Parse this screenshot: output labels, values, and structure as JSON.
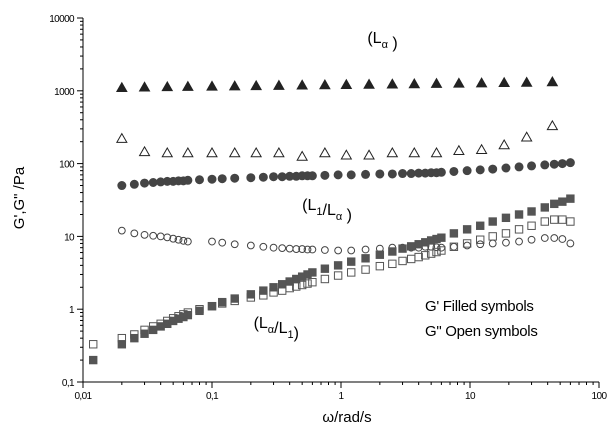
{
  "chart_data": {
    "type": "scatter",
    "title": "",
    "xlabel": "ω/rad/s",
    "ylabel": "G',G\" /Pa",
    "x_scale": "log",
    "y_scale": "log",
    "xlim": [
      0.01,
      100
    ],
    "ylim": [
      0.1,
      10000
    ],
    "grid": false,
    "x_ticks": [
      "0,01",
      "0,1",
      "1",
      "10",
      "100"
    ],
    "y_ticks": [
      "0,1",
      "1",
      "10",
      "100",
      "1000",
      "10000"
    ],
    "annotations": [
      {
        "base": "(L",
        "sub": "α",
        "tail": " )",
        "x": 1.6,
        "y": 4500
      },
      {
        "base": "(L",
        "sub": "1",
        "mid": "/L",
        "sub2": "α",
        "tail": " )",
        "x": 0.5,
        "y": 23
      },
      {
        "base": "(L",
        "sub": "α",
        "mid": "/L",
        "sub2": "1",
        "tail": ")",
        "x": 0.21,
        "y": 0.55
      }
    ],
    "legend": [
      "G' Filled symbols",
      "G\" Open symbols"
    ],
    "series": [
      {
        "phase": "L_alpha",
        "modulus": "G'",
        "marker": "filled-triangle",
        "color": "#222222",
        "points": [
          [
            0.02,
            1100
          ],
          [
            0.03,
            1120
          ],
          [
            0.045,
            1130
          ],
          [
            0.065,
            1140
          ],
          [
            0.1,
            1150
          ],
          [
            0.15,
            1160
          ],
          [
            0.22,
            1170
          ],
          [
            0.33,
            1180
          ],
          [
            0.5,
            1190
          ],
          [
            0.75,
            1200
          ],
          [
            1.1,
            1210
          ],
          [
            1.65,
            1220
          ],
          [
            2.5,
            1230
          ],
          [
            3.7,
            1240
          ],
          [
            5.5,
            1255
          ],
          [
            8.2,
            1265
          ],
          [
            12.3,
            1275
          ],
          [
            18.4,
            1290
          ],
          [
            27.5,
            1300
          ],
          [
            43.5,
            1320
          ]
        ]
      },
      {
        "phase": "L_alpha",
        "modulus": "G\"",
        "marker": "open-triangle",
        "color": "#222222",
        "points": [
          [
            0.02,
            220
          ],
          [
            0.03,
            145
          ],
          [
            0.045,
            140
          ],
          [
            0.065,
            140
          ],
          [
            0.1,
            140
          ],
          [
            0.15,
            140
          ],
          [
            0.22,
            140
          ],
          [
            0.33,
            140
          ],
          [
            0.5,
            125
          ],
          [
            0.75,
            140
          ],
          [
            1.1,
            130
          ],
          [
            1.65,
            130
          ],
          [
            2.5,
            140
          ],
          [
            3.7,
            140
          ],
          [
            5.5,
            140
          ],
          [
            8.2,
            150
          ],
          [
            12.3,
            155
          ],
          [
            18.4,
            180
          ],
          [
            27.5,
            230
          ],
          [
            43.5,
            330
          ]
        ]
      },
      {
        "phase": "L1_La",
        "modulus": "G'",
        "marker": "filled-circle",
        "color": "#444444",
        "points": [
          [
            0.02,
            50
          ],
          [
            0.025,
            52
          ],
          [
            0.03,
            54
          ],
          [
            0.035,
            55
          ],
          [
            0.04,
            56
          ],
          [
            0.045,
            57
          ],
          [
            0.05,
            57
          ],
          [
            0.055,
            58
          ],
          [
            0.06,
            58
          ],
          [
            0.065,
            59
          ],
          [
            0.08,
            60
          ],
          [
            0.1,
            61
          ],
          [
            0.12,
            62
          ],
          [
            0.15,
            63
          ],
          [
            0.2,
            64
          ],
          [
            0.25,
            65
          ],
          [
            0.3,
            66
          ],
          [
            0.35,
            66
          ],
          [
            0.4,
            67
          ],
          [
            0.45,
            67
          ],
          [
            0.5,
            68
          ],
          [
            0.55,
            68
          ],
          [
            0.6,
            68
          ],
          [
            0.75,
            69
          ],
          [
            0.95,
            70
          ],
          [
            1.2,
            70
          ],
          [
            1.55,
            71
          ],
          [
            2,
            72
          ],
          [
            2.5,
            72
          ],
          [
            3,
            73
          ],
          [
            3.5,
            73
          ],
          [
            4,
            74
          ],
          [
            4.5,
            74
          ],
          [
            5,
            75
          ],
          [
            5.5,
            75
          ],
          [
            6,
            76
          ],
          [
            7.5,
            78
          ],
          [
            9.5,
            80
          ],
          [
            12,
            82
          ],
          [
            15,
            84
          ],
          [
            19,
            87
          ],
          [
            24,
            90
          ],
          [
            30,
            93
          ],
          [
            38,
            96
          ],
          [
            45,
            98
          ],
          [
            52,
            100
          ],
          [
            60,
            103
          ]
        ]
      },
      {
        "phase": "L1_La",
        "modulus": "G\"",
        "marker": "open-circle",
        "color": "#444444",
        "points": [
          [
            0.02,
            12
          ],
          [
            0.025,
            11
          ],
          [
            0.03,
            10.5
          ],
          [
            0.035,
            10.2
          ],
          [
            0.04,
            10
          ],
          [
            0.045,
            9.7
          ],
          [
            0.05,
            9.3
          ],
          [
            0.055,
            9
          ],
          [
            0.06,
            8.7
          ],
          [
            0.065,
            8.5
          ],
          [
            0.1,
            8.5
          ],
          [
            0.12,
            8.2
          ],
          [
            0.15,
            7.8
          ],
          [
            0.2,
            7.5
          ],
          [
            0.25,
            7.2
          ],
          [
            0.3,
            7
          ],
          [
            0.35,
            6.9
          ],
          [
            0.4,
            6.8
          ],
          [
            0.45,
            6.7
          ],
          [
            0.5,
            6.7
          ],
          [
            0.55,
            6.6
          ],
          [
            0.6,
            6.6
          ],
          [
            0.75,
            6.5
          ],
          [
            0.95,
            6.4
          ],
          [
            1.2,
            6.4
          ],
          [
            1.55,
            6.6
          ],
          [
            2,
            6.8
          ],
          [
            2.5,
            7
          ],
          [
            3,
            7
          ],
          [
            3.5,
            7
          ],
          [
            4,
            7
          ],
          [
            4.5,
            7.2
          ],
          [
            5,
            7.2
          ],
          [
            5.5,
            7.1
          ],
          [
            6,
            7
          ],
          [
            7.5,
            7.2
          ],
          [
            9.5,
            7.5
          ],
          [
            12,
            7.8
          ],
          [
            15,
            8
          ],
          [
            19,
            8.2
          ],
          [
            24,
            8.5
          ],
          [
            30,
            9
          ],
          [
            38,
            9.5
          ],
          [
            45,
            9.5
          ],
          [
            52,
            9.2
          ],
          [
            60,
            8
          ]
        ]
      },
      {
        "phase": "La_L1",
        "modulus": "G'",
        "marker": "filled-square",
        "color": "#555555",
        "points": [
          [
            0.012,
            0.2
          ],
          [
            0.02,
            0.33
          ],
          [
            0.025,
            0.4
          ],
          [
            0.03,
            0.46
          ],
          [
            0.035,
            0.52
          ],
          [
            0.04,
            0.58
          ],
          [
            0.045,
            0.63
          ],
          [
            0.05,
            0.69
          ],
          [
            0.055,
            0.74
          ],
          [
            0.06,
            0.78
          ],
          [
            0.065,
            0.83
          ],
          [
            0.08,
            0.95
          ],
          [
            0.1,
            1.1
          ],
          [
            0.12,
            1.25
          ],
          [
            0.15,
            1.4
          ],
          [
            0.2,
            1.6
          ],
          [
            0.25,
            1.8
          ],
          [
            0.3,
            2
          ],
          [
            0.35,
            2.2
          ],
          [
            0.4,
            2.4
          ],
          [
            0.45,
            2.6
          ],
          [
            0.5,
            2.8
          ],
          [
            0.55,
            3
          ],
          [
            0.6,
            3.2
          ],
          [
            0.75,
            3.6
          ],
          [
            0.95,
            4
          ],
          [
            1.2,
            4.5
          ],
          [
            1.55,
            5
          ],
          [
            2,
            5.6
          ],
          [
            2.5,
            6.2
          ],
          [
            3,
            6.8
          ],
          [
            3.5,
            7.3
          ],
          [
            4,
            7.8
          ],
          [
            4.5,
            8.3
          ],
          [
            5,
            8.8
          ],
          [
            5.5,
            9.2
          ],
          [
            6,
            9.6
          ],
          [
            7.5,
            11
          ],
          [
            9.5,
            12.5
          ],
          [
            12,
            14
          ],
          [
            15,
            16
          ],
          [
            19,
            18
          ],
          [
            24,
            20
          ],
          [
            30,
            22
          ],
          [
            38,
            25
          ],
          [
            45,
            28
          ],
          [
            52,
            30
          ],
          [
            60,
            33
          ]
        ]
      },
      {
        "phase": "La_L1",
        "modulus": "G\"",
        "marker": "open-square",
        "color": "#555555",
        "points": [
          [
            0.012,
            0.33
          ],
          [
            0.02,
            0.4
          ],
          [
            0.025,
            0.45
          ],
          [
            0.03,
            0.52
          ],
          [
            0.035,
            0.58
          ],
          [
            0.04,
            0.63
          ],
          [
            0.045,
            0.69
          ],
          [
            0.05,
            0.75
          ],
          [
            0.055,
            0.8
          ],
          [
            0.06,
            0.85
          ],
          [
            0.065,
            0.9
          ],
          [
            0.08,
            1.0
          ],
          [
            0.1,
            1.1
          ],
          [
            0.12,
            1.2
          ],
          [
            0.15,
            1.3
          ],
          [
            0.2,
            1.45
          ],
          [
            0.25,
            1.55
          ],
          [
            0.3,
            1.7
          ],
          [
            0.35,
            1.8
          ],
          [
            0.4,
            1.95
          ],
          [
            0.45,
            2.05
          ],
          [
            0.5,
            2.15
          ],
          [
            0.55,
            2.25
          ],
          [
            0.6,
            2.35
          ],
          [
            0.75,
            2.6
          ],
          [
            0.95,
            2.9
          ],
          [
            1.2,
            3.2
          ],
          [
            1.55,
            3.5
          ],
          [
            2,
            3.9
          ],
          [
            2.5,
            4.2
          ],
          [
            3,
            4.6
          ],
          [
            3.5,
            4.9
          ],
          [
            4,
            5.2
          ],
          [
            4.5,
            5.5
          ],
          [
            5,
            5.8
          ],
          [
            5.5,
            6.1
          ],
          [
            6,
            6.4
          ],
          [
            7.5,
            7.2
          ],
          [
            9.5,
            8
          ],
          [
            12,
            9
          ],
          [
            15,
            10
          ],
          [
            19,
            11
          ],
          [
            24,
            12.5
          ],
          [
            30,
            14
          ],
          [
            38,
            16
          ],
          [
            45,
            17
          ],
          [
            52,
            17
          ],
          [
            60,
            16
          ]
        ]
      }
    ]
  }
}
